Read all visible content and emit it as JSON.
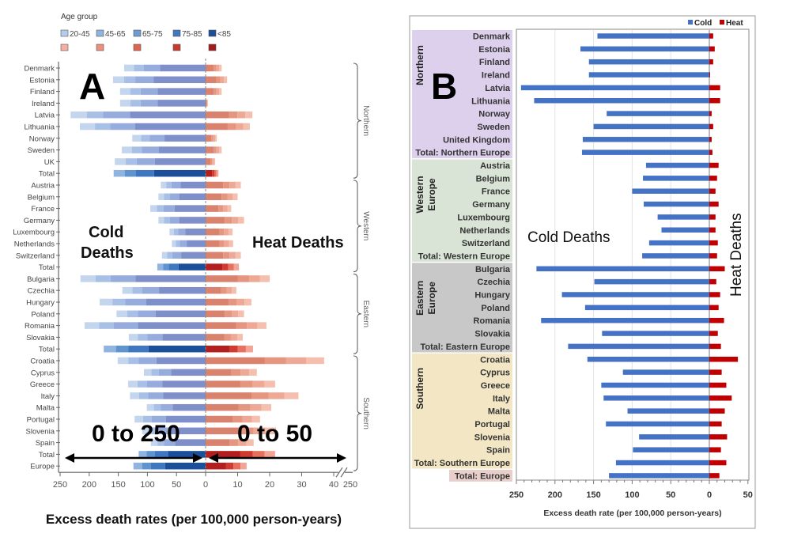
{
  "chart_data": [
    {
      "type": "bar",
      "panel_label": "A",
      "orientation": "horizontal",
      "title": "",
      "xlabel": "Excess death rates (per 100,000 person-years)",
      "ylabel": "",
      "legend": {
        "title": "Age group",
        "entries": [
          "20-45",
          "45-65",
          "65-75",
          "75-85",
          "<85"
        ],
        "placement": "top-left"
      },
      "annotations": {
        "cold": "Cold\nDeaths",
        "heat": "Heat Deaths",
        "cold_range": "0 to 250",
        "heat_range": "0 to 50"
      },
      "cold_axis": {
        "range": [
          250,
          0
        ],
        "ticks": [
          "250",
          "200",
          "150",
          "100",
          "50",
          "0"
        ]
      },
      "heat_axis": {
        "range": [
          0,
          40
        ],
        "ticks": [
          "0",
          "10",
          "20",
          "30",
          "40"
        ],
        "break_tick": "250"
      },
      "groups": [
        {
          "name": "Northern",
          "start": 0,
          "end": 9
        },
        {
          "name": "Western",
          "start": 10,
          "end": 17
        },
        {
          "name": "Eastern",
          "start": 18,
          "end": 24
        },
        {
          "name": "Southern",
          "start": 25,
          "end": 34
        }
      ],
      "categories": [
        "Denmark",
        "Estonia",
        "Finland",
        "Ireland",
        "Latvia",
        "Lithuania",
        "Norway",
        "Sweden",
        "UK",
        "Total",
        "Austria",
        "Belgium",
        "France",
        "Germany",
        "Luxembourg",
        "Netherlands",
        "Switzerland",
        "Total",
        "Bulgaria",
        "Czechia",
        "Hungary",
        "Poland",
        "Romania",
        "Slovakia",
        "Total",
        "Croatia",
        "Cyprus",
        "Greece",
        "Italy",
        "Malta",
        "Portugal",
        "Slovenia",
        "Spain",
        "Total",
        "Europe"
      ],
      "is_total": [
        false,
        false,
        false,
        false,
        false,
        false,
        false,
        false,
        false,
        true,
        false,
        false,
        false,
        false,
        false,
        false,
        false,
        true,
        false,
        false,
        false,
        false,
        false,
        false,
        true,
        false,
        false,
        false,
        false,
        false,
        false,
        false,
        false,
        true,
        true
      ],
      "series": [
        {
          "name": "Cold deaths (all ages)",
          "values": [
            140,
            159,
            147,
            147,
            232,
            216,
            126,
            144,
            156,
            158,
            77,
            81,
            95,
            81,
            62,
            58,
            75,
            83,
            215,
            143,
            182,
            153,
            208,
            132,
            175,
            151,
            106,
            133,
            130,
            101,
            122,
            109,
            94,
            115,
            124
          ]
        },
        {
          "name": "Heat deaths (all ages)",
          "values": [
            5,
            6.7,
            5,
            0.7,
            14.6,
            13.8,
            3.5,
            5,
            3,
            4,
            11,
            10,
            8,
            12,
            8.4,
            8.6,
            11,
            10.4,
            20,
            9.6,
            14.3,
            12,
            19,
            11.6,
            14.8,
            37,
            16,
            21.7,
            29,
            20.5,
            17,
            22,
            15,
            21.7,
            12.8
          ]
        }
      ]
    },
    {
      "type": "bar",
      "panel_label": "B",
      "orientation": "horizontal",
      "title": "",
      "xlabel": "Excess death rate (per 100,000 person-years)",
      "ylabel": "",
      "legend": {
        "entries": [
          "Cold",
          "Heat"
        ],
        "placement": "top-right"
      },
      "annotations": {
        "cold": "Cold Deaths",
        "heat": "Heat Deaths"
      },
      "xlim": [
        -250,
        50
      ],
      "xticks": [
        "250",
        "200",
        "150",
        "100",
        "50",
        "0",
        "50"
      ],
      "groups": [
        {
          "name": "Northern",
          "start": 0,
          "end": 9
        },
        {
          "name": "Western\nEurope",
          "start": 10,
          "end": 17
        },
        {
          "name": "Eastern\nEurope",
          "start": 18,
          "end": 24
        },
        {
          "name": "Southern",
          "start": 25,
          "end": 33
        },
        {
          "name": "",
          "start": 34,
          "end": 34
        }
      ],
      "categories": [
        "Denmark",
        "Estonia",
        "Finland",
        "Ireland",
        "Latvia",
        "Lithuania",
        "Norway",
        "Sweden",
        "United Kingdom",
        "Total: Northern Europe",
        "Austria",
        "Belgium",
        "France",
        "Germany",
        "Luxembourg",
        "Netherlands",
        "Switzerland",
        "Total: Western Europe",
        "Bulgaria",
        "Czechia",
        "Hungary",
        "Poland",
        "Romania",
        "Slovakia",
        "Total: Eastern Europe",
        "Croatia",
        "Cyprus",
        "Greece",
        "Italy",
        "Malta",
        "Portugal",
        "Slovenia",
        "Spain",
        "Total: Southern Europe",
        "Total: Europe"
      ],
      "series": [
        {
          "name": "Cold",
          "color": "#4472c4",
          "values": [
            145,
            167,
            156,
            156,
            244,
            227,
            133,
            150,
            164,
            165,
            82,
            86,
            100,
            85,
            67,
            62,
            78,
            87,
            224,
            149,
            191,
            161,
            218,
            139,
            183,
            158,
            112,
            140,
            137,
            106,
            134,
            91,
            99,
            121,
            130
          ]
        },
        {
          "name": "Heat",
          "color": "#c00000",
          "values": [
            5,
            7,
            5,
            1,
            14,
            14,
            3,
            5,
            3,
            4,
            12,
            10,
            8,
            12,
            8,
            8,
            11,
            10,
            20,
            9,
            14,
            12,
            19,
            11,
            15,
            37,
            16,
            22,
            29,
            20,
            16,
            23,
            15,
            22,
            13
          ]
        }
      ]
    }
  ],
  "colors": {
    "cold_age": [
      "#b3cdea",
      "#8fb4e0",
      "#6d9bd4",
      "#3f78c0",
      "#1b4f9c"
    ],
    "heat_age": [
      "#f3b0a0",
      "#ec8f7c",
      "#df6552",
      "#c93a2e",
      "#a31b1b"
    ],
    "cold_bar_A": "#7f8fc9",
    "heat_bar_A": "#d9836e",
    "group_bg_B": [
      "#ddd0ec",
      "#d9e3d6",
      "#c8c8c8",
      "#f2e6c4",
      "#e9cfcb"
    ],
    "cold_B": "#4472c4",
    "heat_B": "#c00000"
  }
}
